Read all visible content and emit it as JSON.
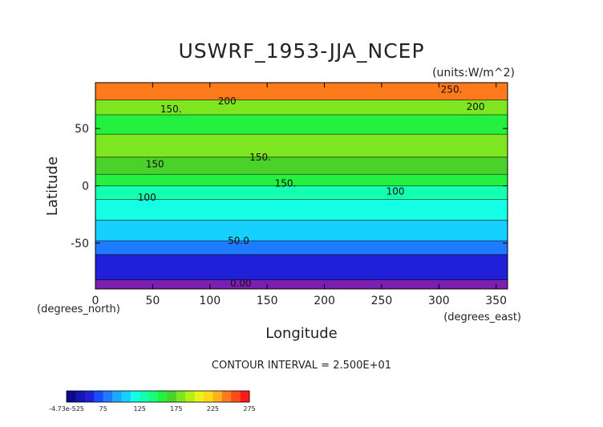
{
  "chart_data": {
    "type": "heatmap",
    "title": "USWRF_1953-JJA_NCEP",
    "units": "(units:W/m^2)",
    "xlabel": "Longitude",
    "ylabel": "Latitude",
    "x_unit_label": "(degrees_east)",
    "y_unit_label": "(degrees_north)",
    "xlim": [
      0,
      360
    ],
    "ylim": [
      -90,
      90
    ],
    "x_ticks": [
      0,
      50,
      100,
      150,
      200,
      250,
      300,
      350
    ],
    "y_ticks": [
      -50,
      0,
      50
    ],
    "contour_interval_text": "CONTOUR INTERVAL = 2.500E+01",
    "contour_labels": [
      {
        "text": "250.",
        "lon": 311,
        "lat": 84
      },
      {
        "text": "200",
        "lon": 115,
        "lat": 74
      },
      {
        "text": "200",
        "lon": 332,
        "lat": 69
      },
      {
        "text": "150.",
        "lon": 66,
        "lat": 67
      },
      {
        "text": "150",
        "lon": 52,
        "lat": 19
      },
      {
        "text": "150.",
        "lon": 144,
        "lat": 25
      },
      {
        "text": "150.",
        "lon": 166,
        "lat": 2
      },
      {
        "text": "100",
        "lon": 262,
        "lat": -5
      },
      {
        "text": "100",
        "lon": 45,
        "lat": -10
      },
      {
        "text": "50.0",
        "lon": 125,
        "lat": -48
      },
      {
        "text": "0.00",
        "lon": 127,
        "lat": -85
      }
    ],
    "latitude_bands": [
      {
        "lat_min": -90,
        "lat_max": -82,
        "value": 0
      },
      {
        "lat_min": -82,
        "lat_max": -60,
        "value": 35
      },
      {
        "lat_min": -60,
        "lat_max": -48,
        "value": 55
      },
      {
        "lat_min": -48,
        "lat_max": -30,
        "value": 85
      },
      {
        "lat_min": -30,
        "lat_max": -12,
        "value": 105
      },
      {
        "lat_min": -12,
        "lat_max": 0,
        "value": 120
      },
      {
        "lat_min": 0,
        "lat_max": 10,
        "value": 140
      },
      {
        "lat_min": 10,
        "lat_max": 25,
        "value": 160
      },
      {
        "lat_min": 25,
        "lat_max": 45,
        "value": 165
      },
      {
        "lat_min": 45,
        "lat_max": 62,
        "value": 150
      },
      {
        "lat_min": 62,
        "lat_max": 75,
        "value": 170
      },
      {
        "lat_min": 75,
        "lat_max": 90,
        "value": 245
      }
    ],
    "colorbar": {
      "tick_labels": [
        "-4.73e-525",
        "75",
        "125",
        "175",
        "225",
        "275"
      ],
      "colors": [
        "#0a0a8c",
        "#1515b0",
        "#2020d8",
        "#1a4cff",
        "#1e7bff",
        "#1fa8ff",
        "#16d0ff",
        "#14ffe6",
        "#15ffb0",
        "#18ff78",
        "#24f040",
        "#4ad22a",
        "#7ee620",
        "#b4f018",
        "#e6f21a",
        "#ffd81a",
        "#ffb01a",
        "#ff7a1a",
        "#ff4a1a",
        "#ff1a1a"
      ]
    }
  }
}
